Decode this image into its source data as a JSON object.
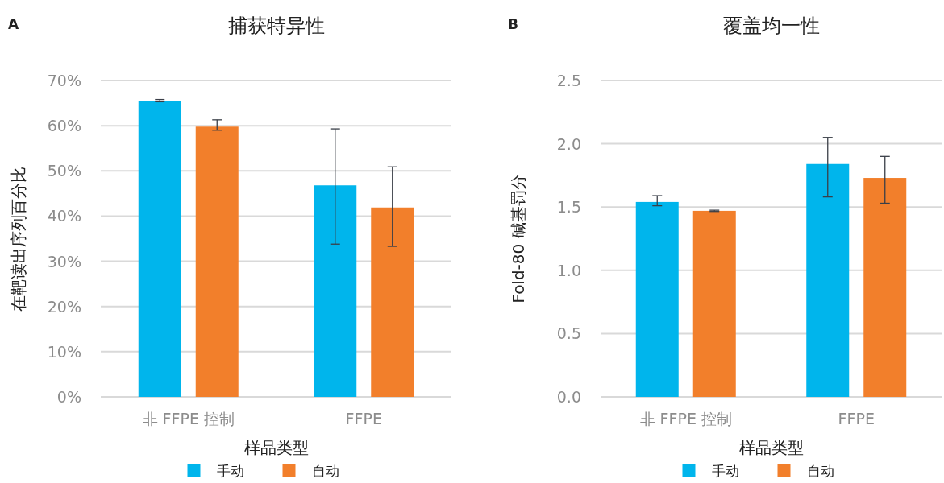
{
  "chart_data": [
    {
      "type": "bar",
      "title": "捕获特异性",
      "annotations": [
        "A"
      ],
      "xlabel": "样品类型",
      "ylabel": "在靶读出序列百分比",
      "categories": [
        "非 FFPE 控制",
        "FFPE"
      ],
      "ylim": [
        0,
        70
      ],
      "yticks": [
        {
          "value": 0,
          "label": "0%"
        },
        {
          "value": 10,
          "label": "10%"
        },
        {
          "value": 20,
          "label": "20%"
        },
        {
          "value": 30,
          "label": "30%"
        },
        {
          "value": 40,
          "label": "40%"
        },
        {
          "value": 50,
          "label": "50%"
        },
        {
          "value": 60,
          "label": "60%"
        },
        {
          "value": 70,
          "label": "70%"
        }
      ],
      "grid": "y",
      "legend": "bottom",
      "series": [
        {
          "name": "手动",
          "color": "#00b5ec",
          "values": [
            65.5,
            46.8
          ],
          "errors": [
            [
              65.3,
              65.8
            ],
            [
              33.8,
              59.3
            ]
          ]
        },
        {
          "name": "自动",
          "color": "#f27f2b",
          "values": [
            59.8,
            41.9
          ],
          "errors": [
            [
              59.0,
              61.3
            ],
            [
              33.3,
              50.9
            ]
          ]
        }
      ]
    },
    {
      "type": "bar",
      "title": "覆盖均一性",
      "annotations": [
        "B"
      ],
      "xlabel": "样品类型",
      "ylabel": "Fold-80 碱基罚分",
      "categories": [
        "非 FFPE 控制",
        "FFPE"
      ],
      "ylim": [
        0,
        2.5
      ],
      "yticks": [
        {
          "value": 0,
          "label": "0.0"
        },
        {
          "value": 0.5,
          "label": "0.5"
        },
        {
          "value": 1,
          "label": "1.0"
        },
        {
          "value": 1.5,
          "label": "1.5"
        },
        {
          "value": 2,
          "label": "2.0"
        },
        {
          "value": 2.5,
          "label": "2.5"
        }
      ],
      "grid": "y",
      "legend": "bottom",
      "series": [
        {
          "name": "手动",
          "color": "#00b5ec",
          "values": [
            1.54,
            1.84
          ],
          "errors": [
            [
              1.51,
              1.59
            ],
            [
              1.58,
              2.05
            ]
          ]
        },
        {
          "name": "自动",
          "color": "#f27f2b",
          "values": [
            1.47,
            1.73
          ],
          "errors": [
            [
              1.465,
              1.475
            ],
            [
              1.53,
              1.9
            ]
          ]
        }
      ]
    }
  ]
}
